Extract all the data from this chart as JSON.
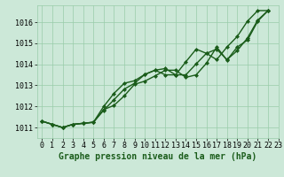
{
  "background_color": "#cce8d8",
  "grid_color": "#99ccaa",
  "line_color": "#1a5c1a",
  "xlim": [
    -0.5,
    23
  ],
  "ylim": [
    1010.5,
    1016.8
  ],
  "yticks": [
    1011,
    1012,
    1013,
    1014,
    1015,
    1016
  ],
  "xticks": [
    0,
    1,
    2,
    3,
    4,
    5,
    6,
    7,
    8,
    9,
    10,
    11,
    12,
    13,
    14,
    15,
    16,
    17,
    18,
    19,
    20,
    21,
    22,
    23
  ],
  "xlabel": "Graphe pression niveau de la mer (hPa)",
  "label_fontsize": 7,
  "tick_fontsize": 6,
  "marker": "D",
  "markersize": 2.0,
  "linewidth": 1.0,
  "series": [
    {
      "x": [
        0,
        1,
        2,
        3,
        4,
        5,
        6,
        7,
        8,
        9,
        10,
        11,
        12,
        13,
        14,
        15,
        16,
        17,
        18,
        19,
        20,
        21,
        22
      ],
      "y": [
        1011.3,
        1011.15,
        1011.0,
        1011.15,
        1011.2,
        1011.25,
        1011.85,
        1012.05,
        1012.5,
        1013.05,
        1013.2,
        1013.45,
        1013.72,
        1013.72,
        1013.38,
        1013.5,
        1014.05,
        1014.82,
        1014.2,
        1014.82,
        1015.15,
        1016.05,
        1016.55
      ]
    },
    {
      "x": [
        0,
        1,
        2,
        3,
        4,
        5,
        6,
        7,
        8,
        9,
        10,
        11,
        12,
        13,
        14,
        15,
        16,
        17,
        18,
        19,
        20,
        21,
        22
      ],
      "y": [
        1011.3,
        1011.15,
        1011.0,
        1011.15,
        1011.2,
        1011.25,
        1012.0,
        1012.62,
        1013.1,
        1013.22,
        1013.52,
        1013.72,
        1013.8,
        1013.5,
        1013.5,
        1014.02,
        1014.52,
        1014.72,
        1014.22,
        1014.65,
        1015.25,
        1016.1,
        1016.55
      ]
    },
    {
      "x": [
        0,
        1,
        2,
        3,
        4,
        5,
        6,
        7,
        8,
        9,
        10,
        11,
        12,
        13,
        14,
        15,
        16,
        17,
        18,
        19,
        20,
        21,
        22
      ],
      "y": [
        1011.3,
        1011.15,
        1011.0,
        1011.15,
        1011.2,
        1011.25,
        1011.82,
        1012.32,
        1012.82,
        1013.1,
        1013.52,
        1013.72,
        1013.5,
        1013.5,
        1014.12,
        1014.72,
        1014.52,
        1014.22,
        1014.82,
        1015.32,
        1016.05,
        1016.55,
        1016.55
      ]
    }
  ]
}
